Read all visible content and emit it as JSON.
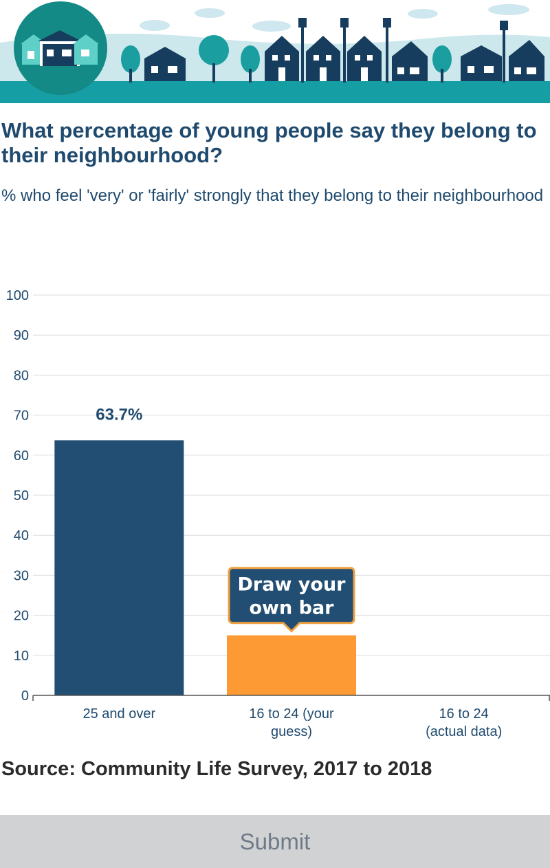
{
  "header": {
    "title": "What percentage of young people say they belong to their neighbourhood?",
    "subtitle": "% who feel 'very' or 'fairly' strongly that they belong to their neighbourhood"
  },
  "chart_data": {
    "type": "bar",
    "categories": [
      "25 and over",
      "16 to 24 (your guess)",
      "16 to 24 (actual data)"
    ],
    "category_lines": [
      [
        "25 and over"
      ],
      [
        "16 to 24 (your",
        "guess)"
      ],
      [
        "16 to 24",
        "(actual data)"
      ]
    ],
    "values": [
      63.7,
      15,
      null
    ],
    "data_labels": [
      "63.7%",
      "",
      ""
    ],
    "ylim": [
      0,
      100
    ],
    "yticks": [
      0,
      10,
      20,
      30,
      40,
      50,
      60,
      70,
      80,
      90,
      100
    ],
    "grid": true,
    "bar_colors": [
      "#234e73",
      "#fd9a34",
      "#234e73"
    ],
    "callout": {
      "lines": [
        "Draw your",
        "own bar"
      ],
      "bg_color": "#234e73",
      "border_color": "#f0a040"
    }
  },
  "source": "Source: Community Life Survey, 2017 to 2018",
  "submit_label": "Submit",
  "colors": {
    "primary": "#234e73",
    "accent": "#fd9a34",
    "teal": "#1a9e9f",
    "button_bg": "#d1d2d4"
  }
}
